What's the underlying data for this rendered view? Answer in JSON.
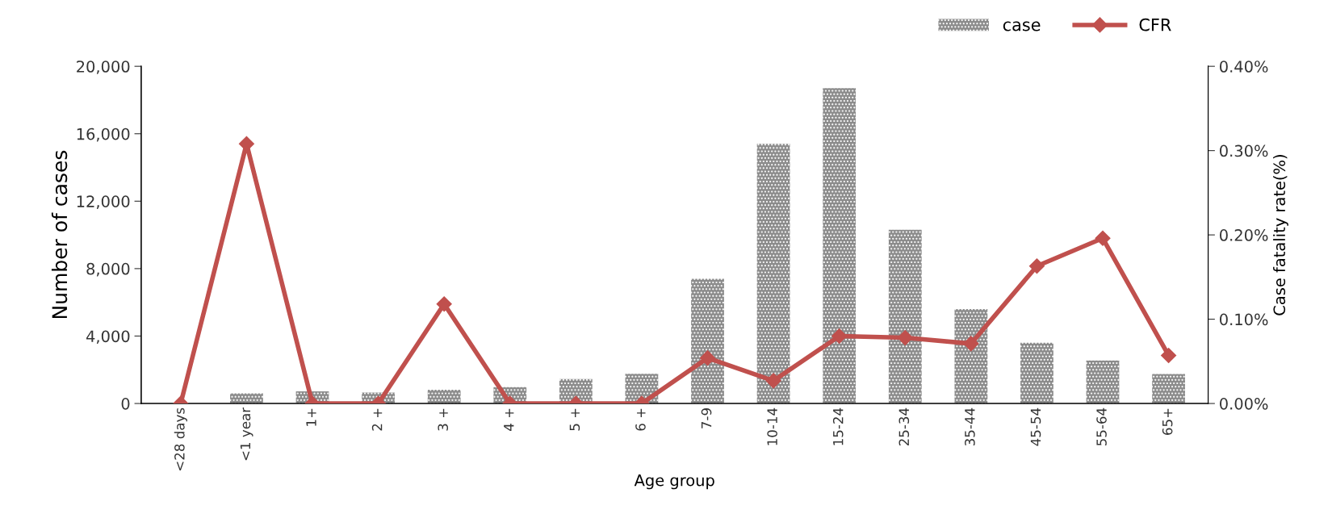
{
  "chart_data": {
    "type": "bar",
    "xlabel": "Age group",
    "ylabel": "Number of cases",
    "y2label": "Case fatality rate(%)",
    "categories": [
      "<28 days",
      "<1 year",
      "1+",
      "2 +",
      "3 +",
      "4 +",
      "5 +",
      "6 +",
      "7-9",
      "10-14",
      "15-24",
      "25-34",
      "35-44",
      "45-54",
      "55-64",
      "65+"
    ],
    "series": [
      {
        "name": "case",
        "color": "#8c8c8c",
        "values": [
          0,
          600,
          720,
          650,
          820,
          970,
          1450,
          1760,
          7400,
          15400,
          18700,
          10300,
          5600,
          3600,
          2550,
          1750
        ]
      },
      {
        "name": "CFR",
        "type": "line",
        "axis": "y2",
        "color": "#c0504d",
        "marker": "diamond",
        "values": [
          0,
          0.308,
          0,
          0,
          0.118,
          0,
          0,
          0,
          0.054,
          0.027,
          0.08,
          0.078,
          0.071,
          0.163,
          0.196,
          0.057
        ]
      }
    ],
    "ylim": [
      0,
      20000
    ],
    "yticks": [
      {
        "value": 0,
        "label": "0"
      },
      {
        "value": 4000,
        "label": "4,000"
      },
      {
        "value": 8000,
        "label": "8,000"
      },
      {
        "value": 12000,
        "label": "12,000"
      },
      {
        "value": 16000,
        "label": "16,000"
      },
      {
        "value": 20000,
        "label": "20,000"
      }
    ],
    "y2lim": [
      0,
      0.4
    ],
    "y2ticks": [
      {
        "value": 0,
        "label": "0.00%"
      },
      {
        "value": 0.1,
        "label": "0.10%"
      },
      {
        "value": 0.2,
        "label": "0.20%"
      },
      {
        "value": 0.3,
        "label": "0.30%"
      },
      {
        "value": 0.4,
        "label": "0.40%"
      }
    ],
    "grid": false,
    "legend": "top right"
  }
}
